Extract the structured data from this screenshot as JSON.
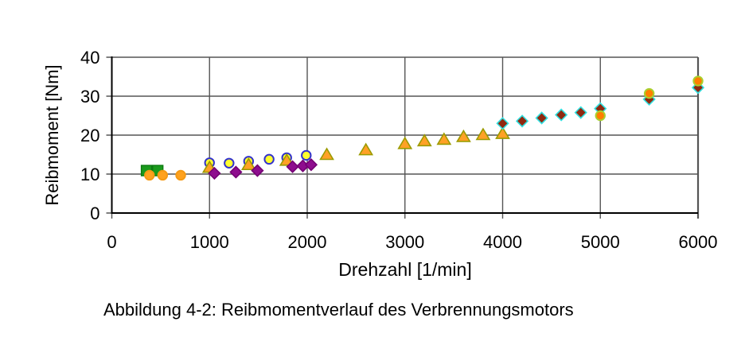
{
  "figure": {
    "caption": "Abbildung 4-2: Reibmomentverlauf des Verbrennungsmotors"
  },
  "chart_data": {
    "type": "scatter",
    "title": "",
    "xlabel": "Drehzahl [1/min]",
    "ylabel": "Reibmoment [Nm]",
    "xlim": [
      0,
      6000
    ],
    "ylim": [
      0,
      40
    ],
    "xticks": [
      0,
      1000,
      2000,
      3000,
      4000,
      5000,
      6000
    ],
    "yticks": [
      0,
      10,
      20,
      30,
      40
    ],
    "grid": true,
    "legend_position": "none",
    "grid_color": "#555555",
    "axis_color": "#000000",
    "series": [
      {
        "name": "green-squares",
        "marker": "square",
        "fill": "#1a9a1c",
        "stroke": "#0c7a10",
        "points": [
          [
            355,
            10.9
          ],
          [
            470,
            10.9
          ]
        ]
      },
      {
        "name": "orange-circles-low",
        "marker": "circle",
        "fill": "#ffa21e",
        "stroke": "#f59a14",
        "points": [
          [
            385,
            9.7
          ],
          [
            520,
            9.7
          ],
          [
            705,
            9.7
          ]
        ]
      },
      {
        "name": "yellow-circles",
        "marker": "circle",
        "fill": "#ffff2e",
        "stroke": "#3333cc",
        "points": [
          [
            1000,
            12.9
          ],
          [
            1200,
            12.8
          ],
          [
            1400,
            13.3
          ],
          [
            1610,
            13.8
          ],
          [
            1790,
            14.2
          ],
          [
            1990,
            14.8
          ]
        ]
      },
      {
        "name": "orange-triangles",
        "marker": "triangle",
        "fill": "#ffa126",
        "stroke": "#9b9b00",
        "points": [
          [
            1000,
            11.7
          ],
          [
            1400,
            12.4
          ],
          [
            1790,
            13.5
          ],
          [
            2200,
            15.0
          ],
          [
            2600,
            16.2
          ],
          [
            3000,
            17.8
          ],
          [
            3200,
            18.5
          ],
          [
            3400,
            18.9
          ],
          [
            3600,
            19.6
          ],
          [
            3800,
            20.1
          ],
          [
            4000,
            20.4
          ]
        ]
      },
      {
        "name": "purple-diamonds",
        "marker": "diamond",
        "fill": "#8e0d8e",
        "stroke": "#740074",
        "points": [
          [
            1050,
            10.2
          ],
          [
            1270,
            10.5
          ],
          [
            1490,
            10.9
          ],
          [
            1850,
            11.9
          ],
          [
            1955,
            12.1
          ],
          [
            2040,
            12.4
          ]
        ]
      },
      {
        "name": "darkred-diamonds",
        "marker": "diamond",
        "fill": "#902810",
        "stroke": "#30e0e0",
        "points": [
          [
            4000,
            23.0
          ],
          [
            4200,
            23.6
          ],
          [
            4400,
            24.4
          ],
          [
            4600,
            25.2
          ],
          [
            4800,
            25.8
          ],
          [
            5000,
            26.8
          ],
          [
            5500,
            29.2
          ],
          [
            6000,
            32.2
          ]
        ]
      },
      {
        "name": "orange-circles-high",
        "marker": "circle",
        "fill": "#ff7f00",
        "stroke": "#a9d02e",
        "points": [
          [
            5000,
            25.0
          ],
          [
            5500,
            30.7
          ],
          [
            6000,
            33.9
          ]
        ]
      }
    ]
  }
}
